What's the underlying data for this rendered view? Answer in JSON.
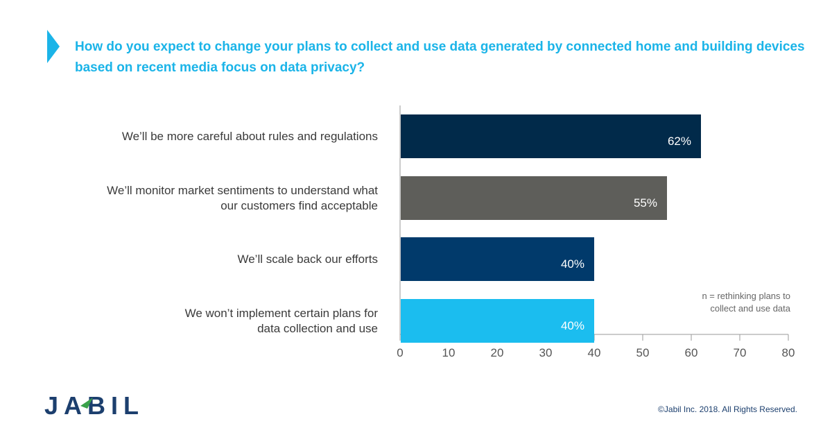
{
  "title": "How do you expect to change your plans to collect and use data generated by connected home and building devices based on recent media focus on data privacy?",
  "chart_data": {
    "type": "bar",
    "orientation": "horizontal",
    "categories": [
      "We’ll be more careful about rules and regulations",
      "We’ll monitor market sentiments to understand what our customers find acceptable",
      "We’ll scale back our efforts",
      "We won’t implement certain plans for data collection and use"
    ],
    "values": [
      62,
      55,
      40,
      40
    ],
    "value_labels": [
      "62%",
      "55%",
      "40%",
      "40%"
    ],
    "colors": [
      "#012a4a",
      "#5e5e5a",
      "#013a6b",
      "#1bbdef"
    ],
    "xlim": [
      0,
      80
    ],
    "xticks": [
      0,
      10,
      20,
      30,
      40,
      50,
      60,
      70,
      80
    ],
    "grid": false,
    "annotation": "n = rethinking plans to\ncollect and use data"
  },
  "category_lines": [
    [
      "We’ll be more careful about rules and regulations"
    ],
    [
      "We’ll monitor market sentiments to understand what",
      "our customers find acceptable"
    ],
    [
      "We’ll scale back our efforts"
    ],
    [
      "We won’t implement certain plans for",
      "data collection and use"
    ]
  ],
  "footer": {
    "logo_text": "JABIL",
    "copyright": "©Jabil Inc. 2018. All Rights Reserved."
  }
}
